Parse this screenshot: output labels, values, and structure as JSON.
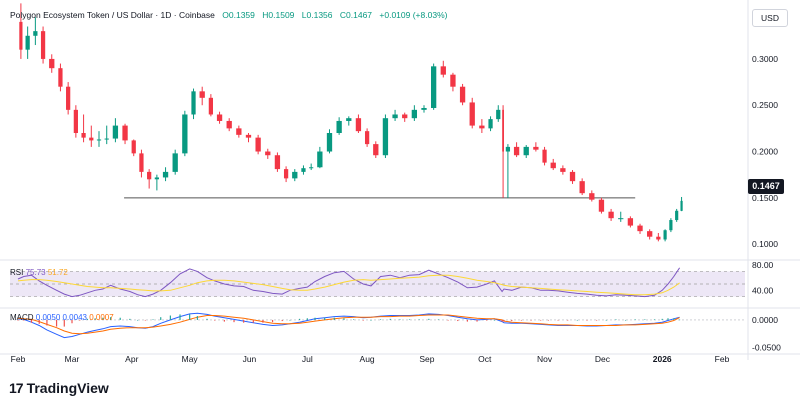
{
  "header": {
    "symbol_label": "Polygon Ecosystem Token / US Dollar · 1D · Coinbase",
    "open": "O0.1359",
    "high": "H0.1509",
    "low": "L0.1356",
    "close": "C0.1467",
    "change": "+0.0109 (+8.03%)"
  },
  "currency_label": "USD",
  "branding": {
    "logo_text": "TradingView"
  },
  "colors": {
    "up": "#089981",
    "down": "#f23645",
    "rsi": "#7e57c2",
    "rsi_ma": "#fdd835",
    "macd": "#2962ff",
    "signal": "#ff6d00",
    "band": "#ede7f6",
    "support": "#555555"
  },
  "chart_data": [
    {
      "type": "candlestick",
      "title": "",
      "y_axis_ticks": [
        "0.3000",
        "0.2500",
        "0.2000",
        "0.1500",
        "0.1000"
      ],
      "ylim": [
        0.085,
        0.355
      ],
      "last_price_label": "0.1467",
      "support_level": 0.15,
      "x_axis_ticks": [
        "Feb",
        "Mar",
        "Apr",
        "May",
        "Jun",
        "Jul",
        "Aug",
        "Sep",
        "Oct",
        "Nov",
        "Dec",
        "2026",
        "Feb"
      ],
      "x": [
        "2025-02-01",
        "2025-02-04",
        "2025-02-08",
        "2025-02-12",
        "2025-02-16",
        "2025-02-21",
        "2025-02-25",
        "2025-03-01",
        "2025-03-05",
        "2025-03-09",
        "2025-03-13",
        "2025-03-17",
        "2025-03-21",
        "2025-03-26",
        "2025-03-31",
        "2025-04-04",
        "2025-04-08",
        "2025-04-12",
        "2025-04-16",
        "2025-04-21",
        "2025-04-26",
        "2025-05-01",
        "2025-05-05",
        "2025-05-10",
        "2025-05-14",
        "2025-05-19",
        "2025-05-24",
        "2025-05-29",
        "2025-06-03",
        "2025-06-08",
        "2025-06-13",
        "2025-06-18",
        "2025-06-22",
        "2025-06-27",
        "2025-07-01",
        "2025-07-05",
        "2025-07-10",
        "2025-07-15",
        "2025-07-20",
        "2025-07-25",
        "2025-07-30",
        "2025-08-03",
        "2025-08-08",
        "2025-08-13",
        "2025-08-18",
        "2025-08-23",
        "2025-08-28",
        "2025-09-02",
        "2025-09-07",
        "2025-09-12",
        "2025-09-17",
        "2025-09-22",
        "2025-09-27",
        "2025-10-02",
        "2025-10-06",
        "2025-10-10",
        "2025-10-11",
        "2025-10-15",
        "2025-10-20",
        "2025-10-25",
        "2025-10-30",
        "2025-11-03",
        "2025-11-08",
        "2025-11-13",
        "2025-11-18",
        "2025-11-23",
        "2025-11-28",
        "2025-12-03",
        "2025-12-08",
        "2025-12-13",
        "2025-12-18",
        "2025-12-23",
        "2025-12-28",
        "2026-01-01",
        "2026-01-04",
        "2026-01-07",
        "2026-01-10"
      ],
      "open": [
        0.34,
        0.31,
        0.325,
        0.33,
        0.3,
        0.29,
        0.27,
        0.245,
        0.22,
        0.215,
        0.212,
        0.213,
        0.214,
        0.228,
        0.212,
        0.198,
        0.178,
        0.17,
        0.172,
        0.178,
        0.198,
        0.24,
        0.265,
        0.258,
        0.24,
        0.233,
        0.225,
        0.218,
        0.215,
        0.2,
        0.196,
        0.181,
        0.171,
        0.178,
        0.182,
        0.183,
        0.2,
        0.22,
        0.233,
        0.236,
        0.222,
        0.208,
        0.196,
        0.236,
        0.24,
        0.236,
        0.245,
        0.247,
        0.292,
        0.283,
        0.27,
        0.253,
        0.228,
        0.225,
        0.235,
        0.245,
        0.2,
        0.205,
        0.196,
        0.205,
        0.202,
        0.188,
        0.182,
        0.178,
        0.168,
        0.155,
        0.148,
        0.135,
        0.128,
        0.128,
        0.12,
        0.114,
        0.108,
        0.105,
        0.115,
        0.126,
        0.1359
      ],
      "high": [
        0.36,
        0.335,
        0.345,
        0.335,
        0.305,
        0.295,
        0.275,
        0.25,
        0.24,
        0.228,
        0.222,
        0.228,
        0.236,
        0.23,
        0.213,
        0.202,
        0.181,
        0.175,
        0.183,
        0.202,
        0.244,
        0.268,
        0.27,
        0.262,
        0.243,
        0.236,
        0.228,
        0.22,
        0.218,
        0.203,
        0.199,
        0.184,
        0.181,
        0.185,
        0.187,
        0.205,
        0.224,
        0.237,
        0.238,
        0.24,
        0.225,
        0.211,
        0.24,
        0.245,
        0.242,
        0.25,
        0.25,
        0.295,
        0.298,
        0.285,
        0.273,
        0.258,
        0.235,
        0.238,
        0.25,
        0.25,
        0.208,
        0.21,
        0.207,
        0.21,
        0.205,
        0.192,
        0.185,
        0.18,
        0.171,
        0.158,
        0.15,
        0.138,
        0.135,
        0.13,
        0.122,
        0.116,
        0.112,
        0.116,
        0.128,
        0.138,
        0.1509
      ],
      "low": [
        0.3,
        0.3,
        0.315,
        0.295,
        0.285,
        0.265,
        0.24,
        0.215,
        0.21,
        0.205,
        0.205,
        0.208,
        0.21,
        0.208,
        0.195,
        0.172,
        0.16,
        0.158,
        0.168,
        0.175,
        0.195,
        0.235,
        0.25,
        0.238,
        0.23,
        0.222,
        0.215,
        0.21,
        0.197,
        0.192,
        0.178,
        0.167,
        0.168,
        0.175,
        0.18,
        0.182,
        0.198,
        0.218,
        0.228,
        0.22,
        0.205,
        0.193,
        0.193,
        0.233,
        0.232,
        0.233,
        0.242,
        0.245,
        0.28,
        0.265,
        0.25,
        0.225,
        0.22,
        0.222,
        0.232,
        0.15,
        0.15,
        0.194,
        0.193,
        0.2,
        0.185,
        0.18,
        0.175,
        0.165,
        0.153,
        0.146,
        0.133,
        0.125,
        0.124,
        0.118,
        0.111,
        0.105,
        0.103,
        0.103,
        0.113,
        0.124,
        0.1356
      ],
      "close": [
        0.31,
        0.325,
        0.33,
        0.3,
        0.29,
        0.27,
        0.245,
        0.22,
        0.215,
        0.212,
        0.213,
        0.214,
        0.228,
        0.212,
        0.198,
        0.178,
        0.17,
        0.172,
        0.178,
        0.198,
        0.24,
        0.265,
        0.258,
        0.24,
        0.233,
        0.225,
        0.218,
        0.215,
        0.2,
        0.196,
        0.181,
        0.171,
        0.178,
        0.182,
        0.183,
        0.2,
        0.22,
        0.233,
        0.236,
        0.222,
        0.208,
        0.196,
        0.236,
        0.24,
        0.236,
        0.245,
        0.247,
        0.292,
        0.283,
        0.27,
        0.253,
        0.228,
        0.225,
        0.235,
        0.245,
        0.2,
        0.205,
        0.196,
        0.205,
        0.202,
        0.188,
        0.182,
        0.178,
        0.168,
        0.155,
        0.148,
        0.135,
        0.128,
        0.128,
        0.12,
        0.114,
        0.108,
        0.105,
        0.115,
        0.126,
        0.136,
        0.1467
      ]
    },
    {
      "type": "line",
      "title": "RSI",
      "legend": [
        "75.73",
        "51.72"
      ],
      "y_axis_ticks": [
        "80.00",
        "40.00"
      ],
      "ylim": [
        15,
        85
      ],
      "band": [
        30,
        70
      ],
      "series": [
        {
          "name": "RSI",
          "values": [
            58,
            62,
            64,
            55,
            48,
            40,
            34,
            30,
            32,
            36,
            40,
            42,
            48,
            42,
            38,
            33,
            30,
            34,
            40,
            52,
            66,
            74,
            70,
            60,
            55,
            50,
            47,
            46,
            40,
            38,
            35,
            34,
            40,
            43,
            45,
            54,
            62,
            68,
            70,
            58,
            50,
            47,
            62,
            64,
            60,
            64,
            65,
            72,
            66,
            60,
            53,
            44,
            45,
            50,
            55,
            38,
            42,
            40,
            45,
            44,
            40,
            40,
            39,
            37,
            35,
            34,
            32,
            31,
            33,
            32,
            31,
            30,
            32,
            40,
            50,
            62,
            75.73
          ]
        },
        {
          "name": "RSI MA",
          "values": [
            55,
            56,
            57,
            57,
            56,
            54,
            52,
            50,
            48,
            46,
            45,
            44,
            44,
            43,
            42,
            41,
            40,
            39,
            39,
            40,
            44,
            48,
            52,
            55,
            56,
            56,
            55,
            53,
            51,
            49,
            46,
            43,
            41,
            40,
            40,
            42,
            45,
            49,
            53,
            56,
            57,
            56,
            57,
            58,
            59,
            60,
            61,
            63,
            64,
            64,
            62,
            59,
            56,
            54,
            52,
            49,
            48,
            46,
            45,
            44,
            43,
            42,
            41,
            40,
            39,
            38,
            37,
            36,
            35,
            34,
            33,
            33,
            34,
            36,
            40,
            45,
            51.72
          ]
        }
      ]
    },
    {
      "type": "line",
      "title": "MACD",
      "legend": [
        "0.0050",
        "0.0043",
        "0.0007"
      ],
      "y_axis_ticks": [
        "0.0000",
        "-0.0500"
      ],
      "ylim": [
        -0.058,
        0.018
      ],
      "series": [
        {
          "name": "MACD",
          "values": [
            0.002,
            0.001,
            -0.004,
            -0.01,
            -0.018,
            -0.026,
            -0.032,
            -0.03,
            -0.026,
            -0.022,
            -0.019,
            -0.016,
            -0.012,
            -0.011,
            -0.012,
            -0.014,
            -0.015,
            -0.012,
            -0.006,
            0.0,
            0.006,
            0.011,
            0.012,
            0.01,
            0.007,
            0.004,
            0.001,
            -0.002,
            -0.005,
            -0.008,
            -0.01,
            -0.009,
            -0.007,
            -0.004,
            -0.001,
            0.002,
            0.004,
            0.006,
            0.007,
            0.006,
            0.004,
            0.005,
            0.007,
            0.008,
            0.008,
            0.008,
            0.009,
            0.011,
            0.01,
            0.008,
            0.005,
            0.002,
            0.0,
            0.001,
            0.002,
            -0.003,
            -0.005,
            -0.006,
            -0.006,
            -0.007,
            -0.008,
            -0.009,
            -0.01,
            -0.01,
            -0.01,
            -0.011,
            -0.011,
            -0.01,
            -0.009,
            -0.009,
            -0.008,
            -0.007,
            -0.006,
            -0.004,
            -0.001,
            0.002,
            0.005
          ]
        },
        {
          "name": "Signal",
          "values": [
            0.003,
            0.002,
            0.001,
            -0.003,
            -0.008,
            -0.014,
            -0.02,
            -0.024,
            -0.025,
            -0.024,
            -0.022,
            -0.02,
            -0.017,
            -0.015,
            -0.014,
            -0.014,
            -0.014,
            -0.013,
            -0.011,
            -0.008,
            -0.004,
            0.001,
            0.005,
            0.008,
            0.008,
            0.007,
            0.005,
            0.003,
            0.0,
            -0.003,
            -0.006,
            -0.007,
            -0.007,
            -0.006,
            -0.004,
            -0.002,
            0.0,
            0.002,
            0.004,
            0.005,
            0.005,
            0.005,
            0.006,
            0.006,
            0.007,
            0.007,
            0.008,
            0.009,
            0.009,
            0.009,
            0.007,
            0.005,
            0.003,
            0.002,
            0.002,
            0.0,
            -0.002,
            -0.004,
            -0.005,
            -0.006,
            -0.007,
            -0.008,
            -0.009,
            -0.009,
            -0.01,
            -0.01,
            -0.01,
            -0.01,
            -0.01,
            -0.009,
            -0.009,
            -0.008,
            -0.007,
            -0.006,
            -0.004,
            -0.001,
            0.0043
          ]
        }
      ]
    }
  ]
}
